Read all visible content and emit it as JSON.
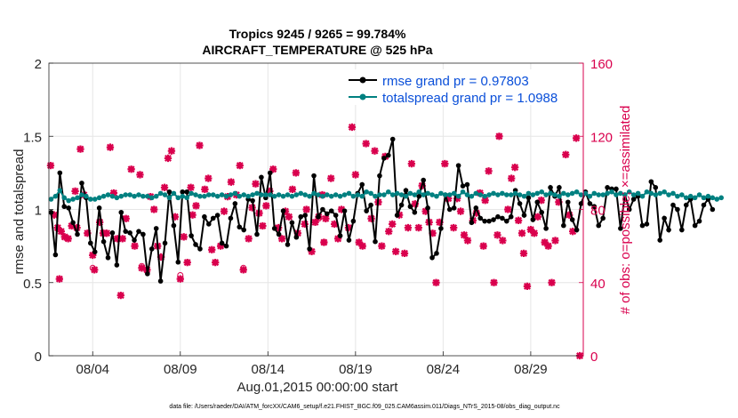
{
  "chart_data": {
    "type": "line",
    "title_line1": "Tropics 9245 / 9265 = 99.784%",
    "title_line2": "AIRCRAFT_TEMPERATURE @ 525 hPa",
    "xlabel": "Aug.01,2015 00:00:00 start",
    "ylabel_left": "rmse and totalspread",
    "ylabel_right": "# of obs: o=possible; ×=assimilated",
    "footer": "data file: /Users/raeder/DAI/ATM_forcXX/CAM6_setup/f.e21.FHIST_BGC.f09_025.CAM6assim.011/Diags_NTrS_2015-08/obs_diag_output.nc",
    "xlim": [
      1.5,
      32.0
    ],
    "ylim_left": [
      0,
      2
    ],
    "ylim_right": [
      0,
      160
    ],
    "x_ticks": [
      4,
      9,
      14,
      19,
      24,
      29
    ],
    "x_tick_labels": [
      "08/04",
      "08/09",
      "08/14",
      "08/19",
      "08/24",
      "08/29"
    ],
    "y_left_ticks": [
      0,
      0.5,
      1,
      1.5,
      2
    ],
    "y_left_tick_labels": [
      "0",
      "0.5",
      "1",
      "1.5",
      "2"
    ],
    "y_right_ticks": [
      0,
      40,
      80,
      120,
      160
    ],
    "y_right_tick_labels": [
      "0",
      "40",
      "80",
      "120",
      "160"
    ],
    "grid": true,
    "legend_position": "top-right",
    "colors": {
      "rmse": "#000000",
      "spread": "#008080",
      "obs": "#d9004d"
    },
    "series": [
      {
        "name": "rmse grand pr = 0.97803",
        "axis": "left",
        "color": "#000000",
        "x_start": 1.625,
        "x_step": 0.25,
        "values": [
          0.98,
          0.69,
          1.25,
          1.02,
          1.01,
          0.91,
          0.83,
          1.18,
          1.08,
          0.77,
          0.71,
          1.01,
          0.78,
          0.67,
          0.84,
          0.62,
          0.98,
          0.85,
          0.84,
          0.79,
          0.85,
          0.83,
          0.56,
          0.73,
          0.87,
          0.51,
          0.77,
          1.12,
          0.89,
          0.64,
          1.12,
          1.12,
          0.82,
          0.76,
          0.73,
          0.95,
          0.9,
          0.94,
          0.96,
          0.77,
          0.75,
          0.94,
          1.04,
          0.88,
          0.86,
          1.07,
          1.06,
          0.83,
          1.22,
          1.08,
          1.25,
          0.87,
          0.83,
          0.99,
          0.76,
          0.91,
          0.81,
          0.95,
          0.96,
          0.73,
          1.23,
          0.95,
          1.0,
          0.97,
          0.99,
          0.96,
          0.82,
          0.99,
          0.79,
          0.92,
          1.11,
          1.17,
          0.99,
          1.03,
          0.78,
          1.23,
          1.35,
          1.37,
          1.48,
          0.96,
          1.03,
          1.13,
          1.02,
          0.98,
          1.09,
          1.2,
          1.01,
          0.67,
          0.7,
          0.87,
          1.1,
          1.0,
          1.01,
          1.3,
          1.16,
          1.17,
          0.91,
          1.01,
          0.94,
          0.92,
          0.92,
          0.93,
          0.95,
          0.94,
          0.92,
          0.95,
          1.13,
          1.04,
          0.96,
          1.08,
          0.93,
          1.05,
          0.98,
          0.87,
          1.15,
          1.09,
          1.15,
          0.89,
          1.05,
          0.93,
          0.86,
          1.04,
          1.12,
          1.04,
          1.02,
          0.89,
          0.94,
          1.15,
          1.14,
          1.14,
          0.87,
          1.1,
          1.0,
          1.07,
          1.09,
          0.89,
          0.9,
          1.19,
          1.15,
          0.79,
          0.94,
          0.86,
          1.03,
          1.0,
          0.86,
          1.03,
          1.07,
          0.89,
          0.92,
          1.03,
          1.07,
          1.0
        ]
      },
      {
        "name": "totalspread grand pr = 1.0988",
        "axis": "left",
        "color": "#008080",
        "x_start": 1.625,
        "x_step": 0.25,
        "values": [
          1.07,
          1.09,
          1.13,
          1.08,
          1.06,
          1.07,
          1.08,
          1.1,
          1.09,
          1.07,
          1.07,
          1.08,
          1.09,
          1.1,
          1.09,
          1.08,
          1.09,
          1.1,
          1.1,
          1.09,
          1.1,
          1.09,
          1.09,
          1.08,
          1.09,
          1.11,
          1.1,
          1.08,
          1.11,
          1.08,
          1.09,
          1.08,
          1.11,
          1.1,
          1.09,
          1.09,
          1.1,
          1.1,
          1.09,
          1.1,
          1.09,
          1.1,
          1.11,
          1.09,
          1.1,
          1.09,
          1.1,
          1.11,
          1.1,
          1.1,
          1.1,
          1.09,
          1.1,
          1.09,
          1.1,
          1.09,
          1.1,
          1.11,
          1.1,
          1.09,
          1.11,
          1.1,
          1.09,
          1.1,
          1.09,
          1.1,
          1.09,
          1.1,
          1.11,
          1.09,
          1.1,
          1.09,
          1.12,
          1.11,
          1.09,
          1.1,
          1.1,
          1.12,
          1.1,
          1.11,
          1.1,
          1.09,
          1.11,
          1.1,
          1.12,
          1.1,
          1.11,
          1.1,
          1.09,
          1.11,
          1.1,
          1.1,
          1.11,
          1.09,
          1.12,
          1.1,
          1.09,
          1.11,
          1.1,
          1.09,
          1.1,
          1.11,
          1.1,
          1.11,
          1.1,
          1.1,
          1.11,
          1.1,
          1.09,
          1.11,
          1.1,
          1.11,
          1.12,
          1.1,
          1.11,
          1.1,
          1.09,
          1.11,
          1.1,
          1.11,
          1.12,
          1.1,
          1.11,
          1.09,
          1.11,
          1.1,
          1.1,
          1.11,
          1.12,
          1.1,
          1.11,
          1.1,
          1.12,
          1.1,
          1.11,
          1.09,
          1.12,
          1.11,
          1.1,
          1.11,
          1.12,
          1.1,
          1.11,
          1.09,
          1.1,
          1.08,
          1.09,
          1.08,
          1.1,
          1.08,
          1.09,
          1.08,
          1.07,
          1.08
        ]
      },
      {
        "name": "observations assimilated",
        "axis": "right",
        "color": "#d9004d",
        "marker": "x",
        "points": [
          [
            1.6,
            104
          ],
          [
            1.8,
            77
          ],
          [
            2.0,
            70
          ],
          [
            2.1,
            42
          ],
          [
            2.2,
            68
          ],
          [
            2.4,
            65
          ],
          [
            2.6,
            64
          ],
          [
            2.8,
            71
          ],
          [
            3.0,
            90
          ],
          [
            3.1,
            70
          ],
          [
            3.3,
            113
          ],
          [
            3.5,
            88
          ],
          [
            3.7,
            67
          ],
          [
            4.0,
            55
          ],
          [
            4.1,
            47
          ],
          [
            4.4,
            73
          ],
          [
            4.6,
            67
          ],
          [
            4.8,
            67
          ],
          [
            5.0,
            114
          ],
          [
            5.2,
            89
          ],
          [
            5.4,
            64
          ],
          [
            5.6,
            33
          ],
          [
            5.7,
            64
          ],
          [
            5.9,
            75
          ],
          [
            6.2,
            102
          ],
          [
            6.4,
            60
          ],
          [
            6.7,
            99
          ],
          [
            6.8,
            48
          ],
          [
            7.1,
            47
          ],
          [
            7.3,
            87
          ],
          [
            7.5,
            80
          ],
          [
            7.7,
            60
          ],
          [
            7.9,
            54
          ],
          [
            8.1,
            92
          ],
          [
            8.3,
            108
          ],
          [
            8.5,
            112
          ],
          [
            8.7,
            76
          ],
          [
            9.0,
            42
          ],
          [
            9.2,
            65
          ],
          [
            9.4,
            51
          ],
          [
            9.6,
            92
          ],
          [
            9.7,
            77
          ],
          [
            9.9,
            82
          ],
          [
            10.1,
            115
          ],
          [
            10.4,
            91
          ],
          [
            10.6,
            97
          ],
          [
            10.8,
            58
          ],
          [
            11.0,
            51
          ],
          [
            11.3,
            60
          ],
          [
            11.5,
            79
          ],
          [
            11.7,
            87
          ],
          [
            11.9,
            95
          ],
          [
            12.2,
            88
          ],
          [
            12.4,
            104
          ],
          [
            12.6,
            47
          ],
          [
            12.9,
            64
          ],
          [
            13.1,
            81
          ],
          [
            13.3,
            94
          ],
          [
            13.5,
            78
          ],
          [
            13.7,
            71
          ],
          [
            13.9,
            82
          ],
          [
            14.1,
            90
          ],
          [
            14.3,
            102
          ],
          [
            14.6,
            70
          ],
          [
            14.8,
            64
          ],
          [
            15.0,
            79
          ],
          [
            15.2,
            76
          ],
          [
            15.4,
            91
          ],
          [
            15.6,
            100
          ],
          [
            15.7,
            67
          ],
          [
            16.1,
            72
          ],
          [
            16.2,
            80
          ],
          [
            16.5,
            57
          ],
          [
            16.7,
            73
          ],
          [
            16.9,
            76
          ],
          [
            17.1,
            88
          ],
          [
            17.2,
            62
          ],
          [
            17.3,
            75
          ],
          [
            17.6,
            97
          ],
          [
            17.8,
            72
          ],
          [
            18.0,
            64
          ],
          [
            18.2,
            80
          ],
          [
            18.6,
            70
          ],
          [
            18.8,
            125
          ],
          [
            19.0,
            99
          ],
          [
            19.2,
            62
          ],
          [
            19.4,
            60
          ],
          [
            19.6,
            116
          ],
          [
            19.9,
            75
          ],
          [
            20.1,
            112
          ],
          [
            20.3,
            84
          ],
          [
            20.5,
            60
          ],
          [
            20.7,
            109
          ],
          [
            20.9,
            68
          ],
          [
            21.1,
            72
          ],
          [
            21.3,
            57
          ],
          [
            21.5,
            77
          ],
          [
            21.8,
            56
          ],
          [
            22.0,
            70
          ],
          [
            22.2,
            105
          ],
          [
            22.4,
            83
          ],
          [
            22.6,
            70
          ],
          [
            22.8,
            93
          ],
          [
            23.0,
            79
          ],
          [
            23.2,
            73
          ],
          [
            23.4,
            67
          ],
          [
            23.6,
            40
          ],
          [
            23.8,
            73
          ],
          [
            24.1,
            105
          ],
          [
            24.3,
            86
          ],
          [
            24.6,
            70
          ],
          [
            24.8,
            86
          ],
          [
            25.0,
            79
          ],
          [
            25.2,
            66
          ],
          [
            25.4,
            63
          ],
          [
            25.7,
            74
          ],
          [
            25.9,
            78
          ],
          [
            26.1,
            89
          ],
          [
            26.3,
            60
          ],
          [
            26.4,
            85
          ],
          [
            26.6,
            101
          ],
          [
            26.9,
            40
          ],
          [
            27.1,
            66
          ],
          [
            27.2,
            120
          ],
          [
            27.4,
            63
          ],
          [
            27.7,
            80
          ],
          [
            27.9,
            97
          ],
          [
            28.1,
            103
          ],
          [
            28.3,
            74
          ],
          [
            28.5,
            67
          ],
          [
            28.6,
            56
          ],
          [
            28.8,
            38
          ],
          [
            29.0,
            69
          ],
          [
            29.2,
            67
          ],
          [
            29.4,
            76
          ],
          [
            29.6,
            85
          ],
          [
            29.8,
            62
          ],
          [
            30.0,
            60
          ],
          [
            30.2,
            40
          ],
          [
            30.4,
            63
          ],
          [
            30.6,
            84
          ],
          [
            31.0,
            110
          ],
          [
            31.2,
            77
          ],
          [
            31.4,
            68
          ],
          [
            31.6,
            119
          ],
          [
            31.8,
            0
          ]
        ]
      },
      {
        "name": "observations possible",
        "axis": "right",
        "color": "#d9004d",
        "marker": "o",
        "points": [
          [
            4.0,
            48
          ],
          [
            6.8,
            49
          ],
          [
            9.0,
            44
          ],
          [
            12.6,
            48
          ],
          [
            16.9,
            75
          ],
          [
            17.2,
            62
          ]
        ]
      }
    ]
  }
}
